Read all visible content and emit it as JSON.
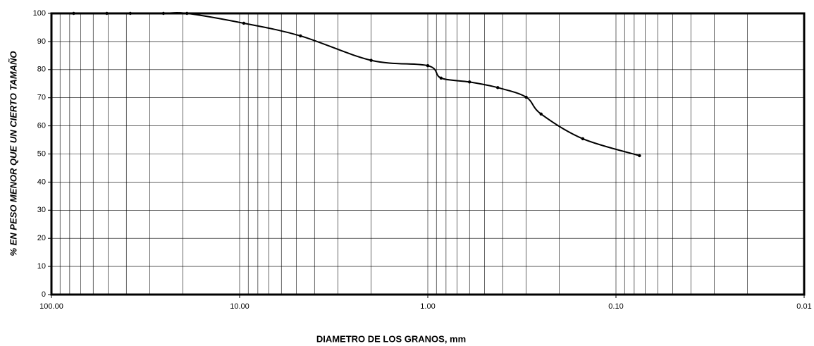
{
  "chart_data": {
    "type": "line",
    "x_label": "DIAMETRO DE LOS GRANOS,  mm",
    "y_label": "% EN PESO MENOR QUE UN CIERTO TAMAÑO",
    "x": [
      76.2,
      50.8,
      38.1,
      25.4,
      19.05,
      9.5,
      4.75,
      2.0,
      1.0,
      0.85,
      0.6,
      0.425,
      0.3,
      0.25,
      0.15,
      0.075
    ],
    "values": [
      100,
      100,
      100,
      100,
      100,
      96.5,
      92,
      83.3,
      81.4,
      77,
      75.6,
      73.6,
      70.2,
      64.2,
      55.4,
      49.4
    ],
    "color": "#000000",
    "xscale": "log",
    "xreversed": true,
    "xlim": [
      100,
      0.01
    ],
    "xticks": [
      {
        "value": 100,
        "label": "100.00"
      },
      {
        "value": 10,
        "label": "10.00"
      },
      {
        "value": 1,
        "label": "1.00"
      },
      {
        "value": 0.1,
        "label": "0.10"
      },
      {
        "value": 0.01,
        "label": "0.01"
      }
    ],
    "xminor": [
      90,
      80,
      70,
      60,
      50,
      40,
      30,
      20,
      9,
      8,
      7,
      6,
      5,
      4,
      3,
      2,
      0.9,
      0.8,
      0.7,
      0.6,
      0.5,
      0.4,
      0.3,
      0.2,
      0.09,
      0.08,
      0.07,
      0.06,
      0.05,
      0.04,
      0.03,
      0.02
    ],
    "ylim": [
      0,
      100
    ],
    "yticks": [
      0,
      10,
      20,
      30,
      40,
      50,
      60,
      70,
      80,
      90,
      100
    ],
    "grid": true
  }
}
